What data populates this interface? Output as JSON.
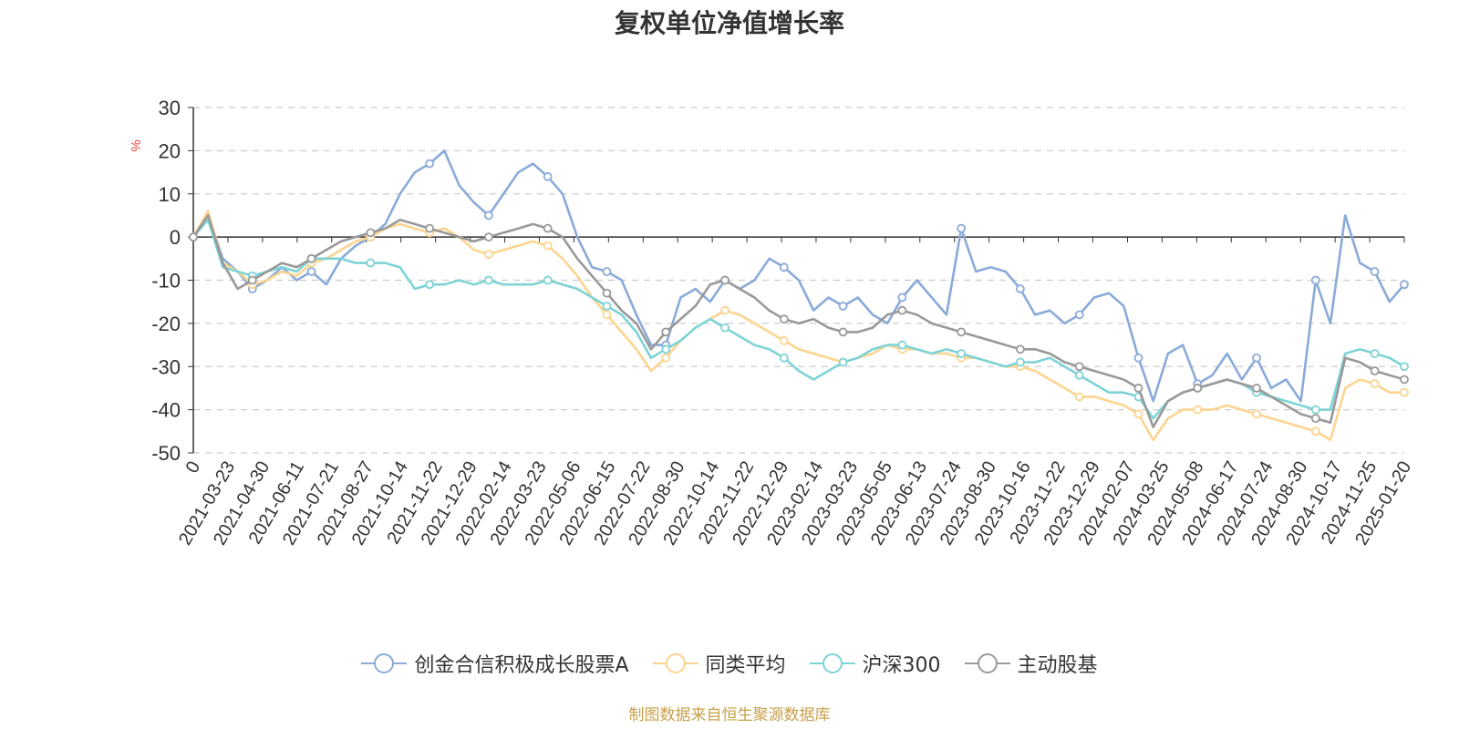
{
  "chart_data": {
    "type": "line",
    "title": "复权单位净值增长率",
    "ylabel": "%",
    "ylim": [
      -50,
      30
    ],
    "yticks": [
      30,
      20,
      10,
      0,
      -10,
      -20,
      -30,
      -40,
      -50
    ],
    "grid": true,
    "legend_position": "bottom",
    "xticks": [
      "0",
      "2021-03-23",
      "2021-04-30",
      "2021-06-11",
      "2021-07-21",
      "2021-08-27",
      "2021-10-14",
      "2021-11-22",
      "2021-12-29",
      "2022-02-14",
      "2022-03-23",
      "2022-05-06",
      "2022-06-15",
      "2022-07-22",
      "2022-08-30",
      "2022-10-14",
      "2022-11-22",
      "2022-12-29",
      "2023-02-14",
      "2023-03-23",
      "2023-05-05",
      "2023-06-13",
      "2023-07-24",
      "2023-08-30",
      "2023-10-16",
      "2023-11-22",
      "2023-12-29",
      "2024-02-07",
      "2024-03-25",
      "2024-05-08",
      "2024-06-17",
      "2024-07-24",
      "2024-08-30",
      "2024-10-17",
      "2024-11-25",
      "2025-01-20"
    ],
    "series": [
      {
        "name": "创金合信积极成长股票A",
        "color": "#8aaad9",
        "values": [
          0,
          5,
          -5,
          -8,
          -12,
          -10,
          -7,
          -10,
          -8,
          -11,
          -5,
          -2,
          0,
          3,
          10,
          15,
          17,
          20,
          12,
          8,
          5,
          10,
          15,
          17,
          14,
          10,
          0,
          -7,
          -8,
          -10,
          -18,
          -25,
          -25,
          -14,
          -12,
          -15,
          -10,
          -12,
          -10,
          -5,
          -7,
          -10,
          -17,
          -14,
          -16,
          -14,
          -18,
          -20,
          -14,
          -10,
          -14,
          -18,
          2,
          -8,
          -7,
          -8,
          -12,
          -18,
          -17,
          -20,
          -18,
          -14,
          -13,
          -16,
          -28,
          -38,
          -27,
          -25,
          -34,
          -32,
          -27,
          -33,
          -28,
          -35,
          -33,
          -38,
          -10,
          -20,
          5,
          -6,
          -8,
          -15,
          -11
        ]
      },
      {
        "name": "同类平均",
        "color": "#fcd48f",
        "values": [
          0,
          6,
          -6,
          -8,
          -11,
          -10,
          -8,
          -9,
          -6,
          -5,
          -3,
          -1,
          0,
          2,
          3,
          2,
          1,
          2,
          0,
          -3,
          -4,
          -3,
          -2,
          -1,
          -2,
          -5,
          -9,
          -14,
          -18,
          -22,
          -26,
          -31,
          -28,
          -24,
          -21,
          -19,
          -17,
          -18,
          -20,
          -22,
          -24,
          -26,
          -27,
          -28,
          -29,
          -28,
          -27,
          -25,
          -26,
          -26,
          -27,
          -27,
          -28,
          -28,
          -29,
          -30,
          -30,
          -31,
          -33,
          -35,
          -37,
          -37,
          -38,
          -39,
          -41,
          -47,
          -42,
          -40,
          -40,
          -40,
          -39,
          -40,
          -41,
          -42,
          -43,
          -44,
          -45,
          -47,
          -35,
          -33,
          -34,
          -36,
          -36
        ]
      },
      {
        "name": "沪深300",
        "color": "#7dd3d6",
        "values": [
          0,
          4,
          -7,
          -8,
          -9,
          -8,
          -7,
          -8,
          -5,
          -5,
          -5,
          -6,
          -6,
          -6,
          -7,
          -12,
          -11,
          -11,
          -10,
          -11,
          -10,
          -11,
          -11,
          -11,
          -10,
          -11,
          -12,
          -14,
          -16,
          -18,
          -22,
          -28,
          -26,
          -24,
          -21,
          -19,
          -21,
          -23,
          -25,
          -26,
          -28,
          -31,
          -33,
          -31,
          -29,
          -28,
          -26,
          -25,
          -25,
          -26,
          -27,
          -26,
          -27,
          -28,
          -29,
          -30,
          -29,
          -29,
          -28,
          -30,
          -32,
          -34,
          -36,
          -36,
          -37,
          -42,
          -38,
          -36,
          -35,
          -34,
          -33,
          -34,
          -36,
          -37,
          -38,
          -39,
          -40,
          -40,
          -27,
          -26,
          -27,
          -28,
          -30
        ]
      },
      {
        "name": "主动股基",
        "color": "#999999",
        "values": [
          0,
          5,
          -6,
          -12,
          -10,
          -8,
          -6,
          -7,
          -5,
          -3,
          -1,
          0,
          1,
          2,
          4,
          3,
          2,
          1,
          0,
          -1,
          0,
          1,
          2,
          3,
          2,
          0,
          -5,
          -9,
          -13,
          -17,
          -20,
          -26,
          -22,
          -19,
          -16,
          -11,
          -10,
          -12,
          -14,
          -17,
          -19,
          -20,
          -19,
          -21,
          -22,
          -22,
          -21,
          -18,
          -17,
          -18,
          -20,
          -21,
          -22,
          -23,
          -24,
          -25,
          -26,
          -26,
          -27,
          -29,
          -30,
          -31,
          -32,
          -33,
          -35,
          -44,
          -38,
          -36,
          -35,
          -34,
          -33,
          -34,
          -35,
          -37,
          -39,
          -41,
          -42,
          -43,
          -28,
          -29,
          -31,
          -32,
          -33
        ]
      }
    ]
  },
  "footer": {
    "source_text": "制图数据来自恒生聚源数据库",
    "source_color": "#c8a04a",
    "ylabel_color": "#e8413e"
  }
}
